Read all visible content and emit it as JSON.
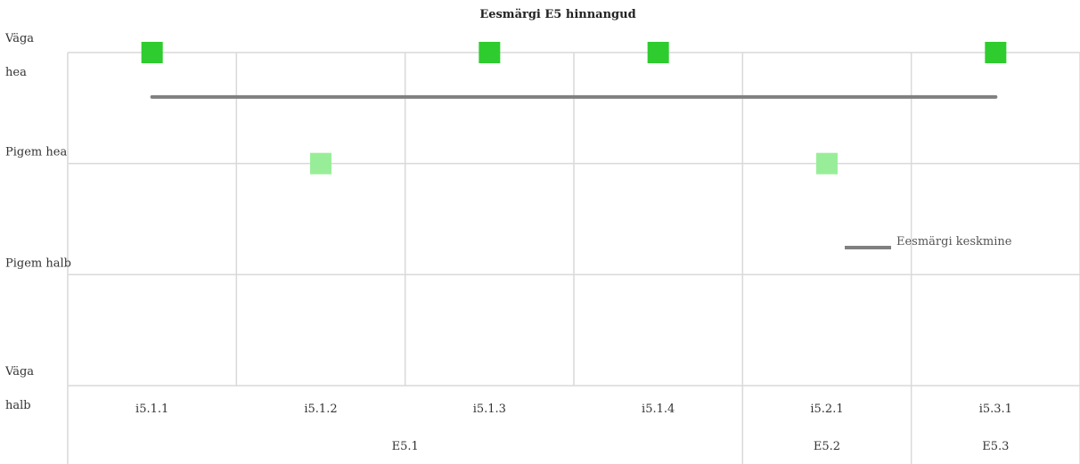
{
  "chart_data": {
    "type": "scatter",
    "title": "Eesmärgi E5 hinnangud",
    "y_levels": [
      "Väga halb",
      "Pigem halb",
      "Pigem hea",
      "Väga hea"
    ],
    "ylim": [
      1,
      4
    ],
    "y_tick_lines": [
      [
        "Väga",
        "hea"
      ],
      [
        "Pigem hea"
      ],
      [
        "Pigem halb"
      ],
      [
        "Väga",
        "halb"
      ]
    ],
    "categories": [
      "i5.1.1",
      "i5.1.2",
      "i5.1.3",
      "i5.1.4",
      "i5.2.1",
      "i5.3.1"
    ],
    "groups": [
      {
        "label": "E5.1",
        "categories": [
          "i5.1.1",
          "i5.1.2",
          "i5.1.3",
          "i5.1.4"
        ]
      },
      {
        "label": "E5.2",
        "categories": [
          "i5.2.1"
        ]
      },
      {
        "label": "E5.3",
        "categories": [
          "i5.3.1"
        ]
      }
    ],
    "series": [
      {
        "values": [
          4,
          3,
          4,
          4,
          3,
          4
        ],
        "color_by_value": {
          "4": "#2ecc2e",
          "3": "#98ee98"
        }
      },
      {
        "name": "Eesmärgi keskmine",
        "values": [
          3.6,
          3.6,
          3.6,
          3.6,
          3.6,
          3.6
        ],
        "color": "#808080"
      }
    ],
    "grid": true,
    "legend_position": "right"
  }
}
